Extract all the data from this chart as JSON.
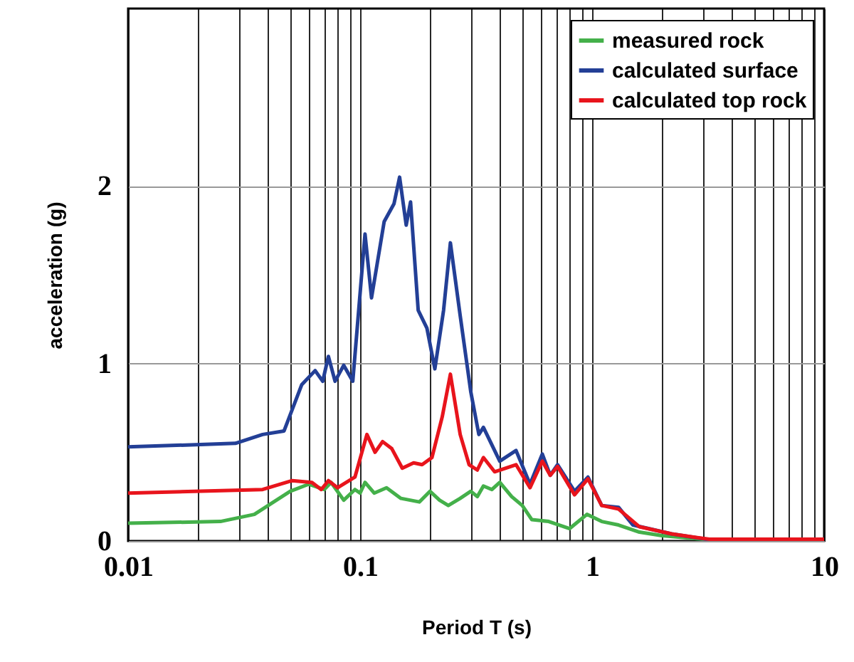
{
  "chart_data": {
    "type": "line",
    "xlabel": "Period T (s)",
    "ylabel": "acceleration (g)",
    "log": "x",
    "grid": true,
    "legend": "top right",
    "xlim": [
      0.01,
      10
    ],
    "xticks": [
      0.01,
      {
        "value": 0.02,
        "label": null
      },
      {
        "value": 0.03,
        "label": null
      },
      {
        "value": 0.04,
        "label": null
      },
      {
        "value": 0.05,
        "label": null
      },
      {
        "value": 0.06,
        "label": null
      },
      {
        "value": 0.07,
        "label": null
      },
      {
        "value": 0.08,
        "label": null
      },
      {
        "value": 0.09,
        "label": null
      },
      0.1,
      {
        "value": 0.2,
        "label": null
      },
      {
        "value": 0.3,
        "label": null
      },
      {
        "value": 0.4,
        "label": null
      },
      {
        "value": 0.5,
        "label": null
      },
      {
        "value": 0.6,
        "label": null
      },
      {
        "value": 0.7,
        "label": null
      },
      {
        "value": 0.8,
        "label": null
      },
      {
        "value": 0.9,
        "label": null
      },
      1,
      {
        "value": 2,
        "label": null
      },
      {
        "value": 3,
        "label": null
      },
      {
        "value": 4,
        "label": null
      },
      {
        "value": 5,
        "label": null
      },
      {
        "value": 6,
        "label": null
      },
      {
        "value": 7,
        "label": null
      },
      {
        "value": 8,
        "label": null
      },
      {
        "value": 9,
        "label": null
      },
      10
    ],
    "ylim": [
      0,
      3
    ],
    "yticks": [
      0,
      1,
      2
    ],
    "series": [
      {
        "name": "measured rock",
        "color": "#44b04a",
        "x": [
          0.01,
          0.025,
          0.035,
          0.05,
          0.06,
          0.07,
          0.075,
          0.085,
          0.095,
          0.1,
          0.105,
          0.115,
          0.13,
          0.15,
          0.18,
          0.2,
          0.22,
          0.24,
          0.27,
          0.3,
          0.32,
          0.34,
          0.37,
          0.4,
          0.45,
          0.5,
          0.55,
          0.65,
          0.8,
          0.95,
          1.1,
          1.3,
          1.6,
          2,
          3,
          5,
          8
        ],
        "values": [
          0.1,
          0.11,
          0.15,
          0.28,
          0.32,
          0.29,
          0.33,
          0.23,
          0.29,
          0.27,
          0.33,
          0.27,
          0.3,
          0.24,
          0.22,
          0.28,
          0.23,
          0.2,
          0.24,
          0.28,
          0.25,
          0.31,
          0.29,
          0.33,
          0.25,
          0.2,
          0.12,
          0.11,
          0.07,
          0.15,
          0.11,
          0.09,
          0.05,
          0.03,
          0.01,
          0.01,
          0.01
        ]
      },
      {
        "name": "calculated surface",
        "color": "#233f96",
        "x": [
          0.01,
          0.029,
          0.038,
          0.047,
          0.056,
          0.064,
          0.069,
          0.073,
          0.078,
          0.085,
          0.093,
          0.105,
          0.112,
          0.127,
          0.14,
          0.148,
          0.158,
          0.165,
          0.178,
          0.194,
          0.21,
          0.229,
          0.245,
          0.27,
          0.3,
          0.325,
          0.34,
          0.4,
          0.47,
          0.54,
          0.61,
          0.66,
          0.71,
          0.84,
          0.96,
          1.1,
          1.3,
          1.5,
          2.2,
          3.1,
          10
        ],
        "values": [
          0.53,
          0.55,
          0.6,
          0.62,
          0.88,
          0.96,
          0.9,
          1.04,
          0.9,
          0.99,
          0.9,
          1.73,
          1.37,
          1.8,
          1.9,
          2.05,
          1.78,
          1.91,
          1.3,
          1.2,
          0.97,
          1.3,
          1.68,
          1.27,
          0.84,
          0.6,
          0.64,
          0.45,
          0.51,
          0.32,
          0.49,
          0.37,
          0.43,
          0.28,
          0.36,
          0.2,
          0.19,
          0.09,
          0.04,
          0.01,
          0.01
        ]
      },
      {
        "name": "calculated top rock",
        "color": "#e8141c",
        "x": [
          0.01,
          0.038,
          0.051,
          0.062,
          0.068,
          0.073,
          0.08,
          0.095,
          0.107,
          0.116,
          0.125,
          0.137,
          0.152,
          0.17,
          0.185,
          0.204,
          0.226,
          0.245,
          0.27,
          0.295,
          0.32,
          0.34,
          0.38,
          0.47,
          0.54,
          0.61,
          0.66,
          0.71,
          0.84,
          0.96,
          1.1,
          1.3,
          1.6,
          2.2,
          2.8,
          3.2,
          10
        ],
        "values": [
          0.27,
          0.29,
          0.34,
          0.33,
          0.29,
          0.34,
          0.3,
          0.36,
          0.6,
          0.5,
          0.56,
          0.52,
          0.41,
          0.44,
          0.43,
          0.47,
          0.7,
          0.94,
          0.6,
          0.43,
          0.4,
          0.47,
          0.39,
          0.43,
          0.3,
          0.45,
          0.37,
          0.42,
          0.26,
          0.35,
          0.2,
          0.18,
          0.08,
          0.04,
          0.02,
          0.01,
          0.01
        ]
      }
    ]
  }
}
